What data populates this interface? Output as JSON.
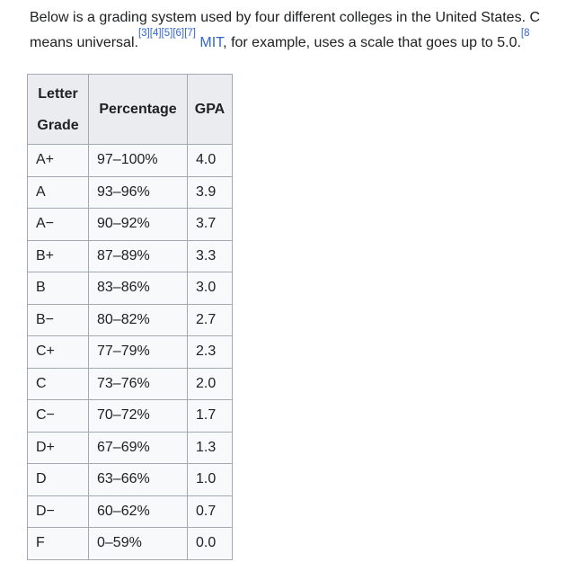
{
  "page": {
    "background": "#ffffff",
    "text_color": "#202122",
    "link_color": "#3366cc"
  },
  "intro": {
    "line1": "Below is a grading system used by four different colleges in the United States. C",
    "line2_start": "means universal.",
    "citations": [
      "[3]",
      "[4]",
      "[5]",
      "[6]",
      "[7]"
    ],
    "mit_link": "MIT",
    "line2_rest": ", for example, uses a scale that goes up to 5.0.",
    "citation_trailing": "[8"
  },
  "table": {
    "border_color": "#a2a9b1",
    "header_bg": "#eaecf0",
    "cell_bg": "#f8f9fa",
    "headers": {
      "letter": "Letter Grade",
      "percentage": "Percentage",
      "gpa": "GPA"
    },
    "rows": [
      {
        "letter": "A+",
        "percentage": "97–100%",
        "gpa": "4.0"
      },
      {
        "letter": "A",
        "percentage": "93–96%",
        "gpa": "3.9"
      },
      {
        "letter": "A−",
        "percentage": "90–92%",
        "gpa": "3.7"
      },
      {
        "letter": "B+",
        "percentage": "87–89%",
        "gpa": "3.3"
      },
      {
        "letter": "B",
        "percentage": "83–86%",
        "gpa": "3.0"
      },
      {
        "letter": "B−",
        "percentage": "80–82%",
        "gpa": "2.7"
      },
      {
        "letter": "C+",
        "percentage": "77–79%",
        "gpa": "2.3"
      },
      {
        "letter": "C",
        "percentage": "73–76%",
        "gpa": "2.0"
      },
      {
        "letter": "C−",
        "percentage": "70–72%",
        "gpa": "1.7"
      },
      {
        "letter": "D+",
        "percentage": "67–69%",
        "gpa": "1.3"
      },
      {
        "letter": "D",
        "percentage": "63–66%",
        "gpa": "1.0"
      },
      {
        "letter": "D−",
        "percentage": "60–62%",
        "gpa": "0.7"
      },
      {
        "letter": "F",
        "percentage": "0–59%",
        "gpa": "0.0"
      }
    ]
  }
}
